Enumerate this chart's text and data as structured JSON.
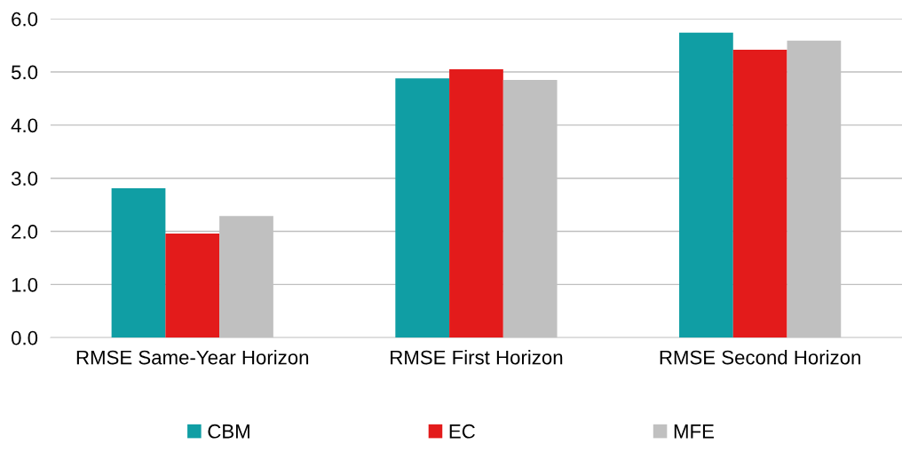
{
  "chart_data": {
    "type": "bar",
    "categories": [
      "RMSE Same-Year Horizon",
      "RMSE First Horizon",
      "RMSE Second Horizon"
    ],
    "series": [
      {
        "name": "CBM",
        "color": "#109ea4",
        "values": [
          2.81,
          4.88,
          5.74
        ]
      },
      {
        "name": "EC",
        "color": "#e31b1b",
        "values": [
          1.96,
          5.05,
          5.42
        ]
      },
      {
        "name": "MFE",
        "color": "#c0c0c0",
        "values": [
          2.29,
          4.85,
          5.59
        ]
      }
    ],
    "ylim": [
      0,
      6
    ],
    "yticks": [
      {
        "value": 0,
        "label": "0.0"
      },
      {
        "value": 1,
        "label": "1.0"
      },
      {
        "value": 2,
        "label": "2.0"
      },
      {
        "value": 3,
        "label": "3.0"
      },
      {
        "value": 4,
        "label": "4.0"
      },
      {
        "value": 5,
        "label": "5.0"
      },
      {
        "value": 6,
        "label": "6.0"
      }
    ],
    "grid": "y",
    "legend": "bottom"
  }
}
